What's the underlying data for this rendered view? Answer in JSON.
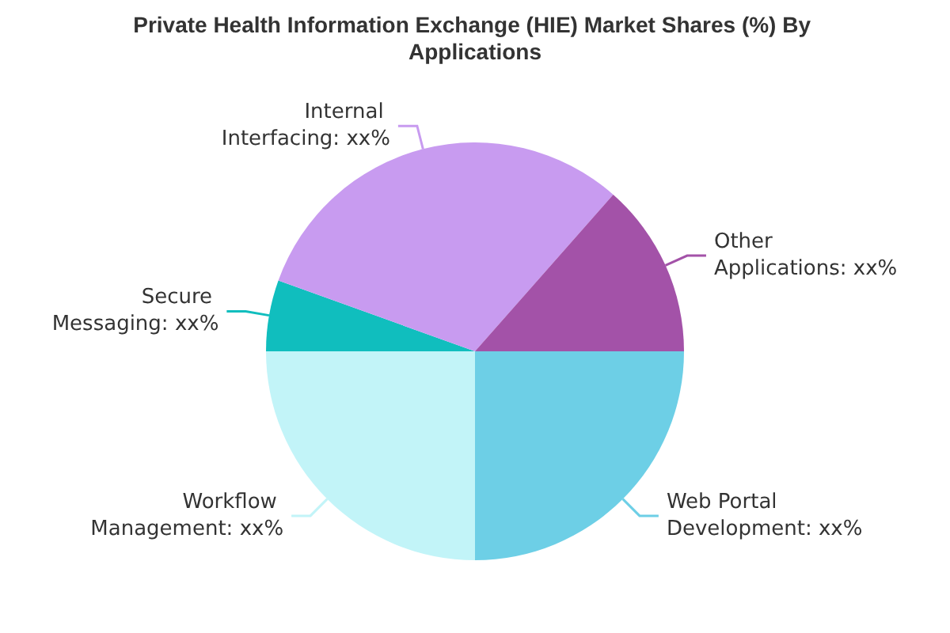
{
  "chart_data": {
    "type": "pie",
    "title": "Private Health Information Exchange (HIE) Market Shares (%) By Applications",
    "categories": [
      "Web Portal Development",
      "Workflow Management",
      "Secure Messaging",
      "Internal Interfacing",
      "Other Applications"
    ],
    "values": [
      25,
      25,
      5.5,
      31,
      13.5
    ],
    "value_labels": [
      "xx%",
      "xx%",
      "xx%",
      "xx%",
      "xx%"
    ],
    "colors": [
      "#6dcfe6",
      "#c2f4f8",
      "#10bebe",
      "#c89bf0",
      "#a352a8"
    ],
    "legend": false
  }
}
